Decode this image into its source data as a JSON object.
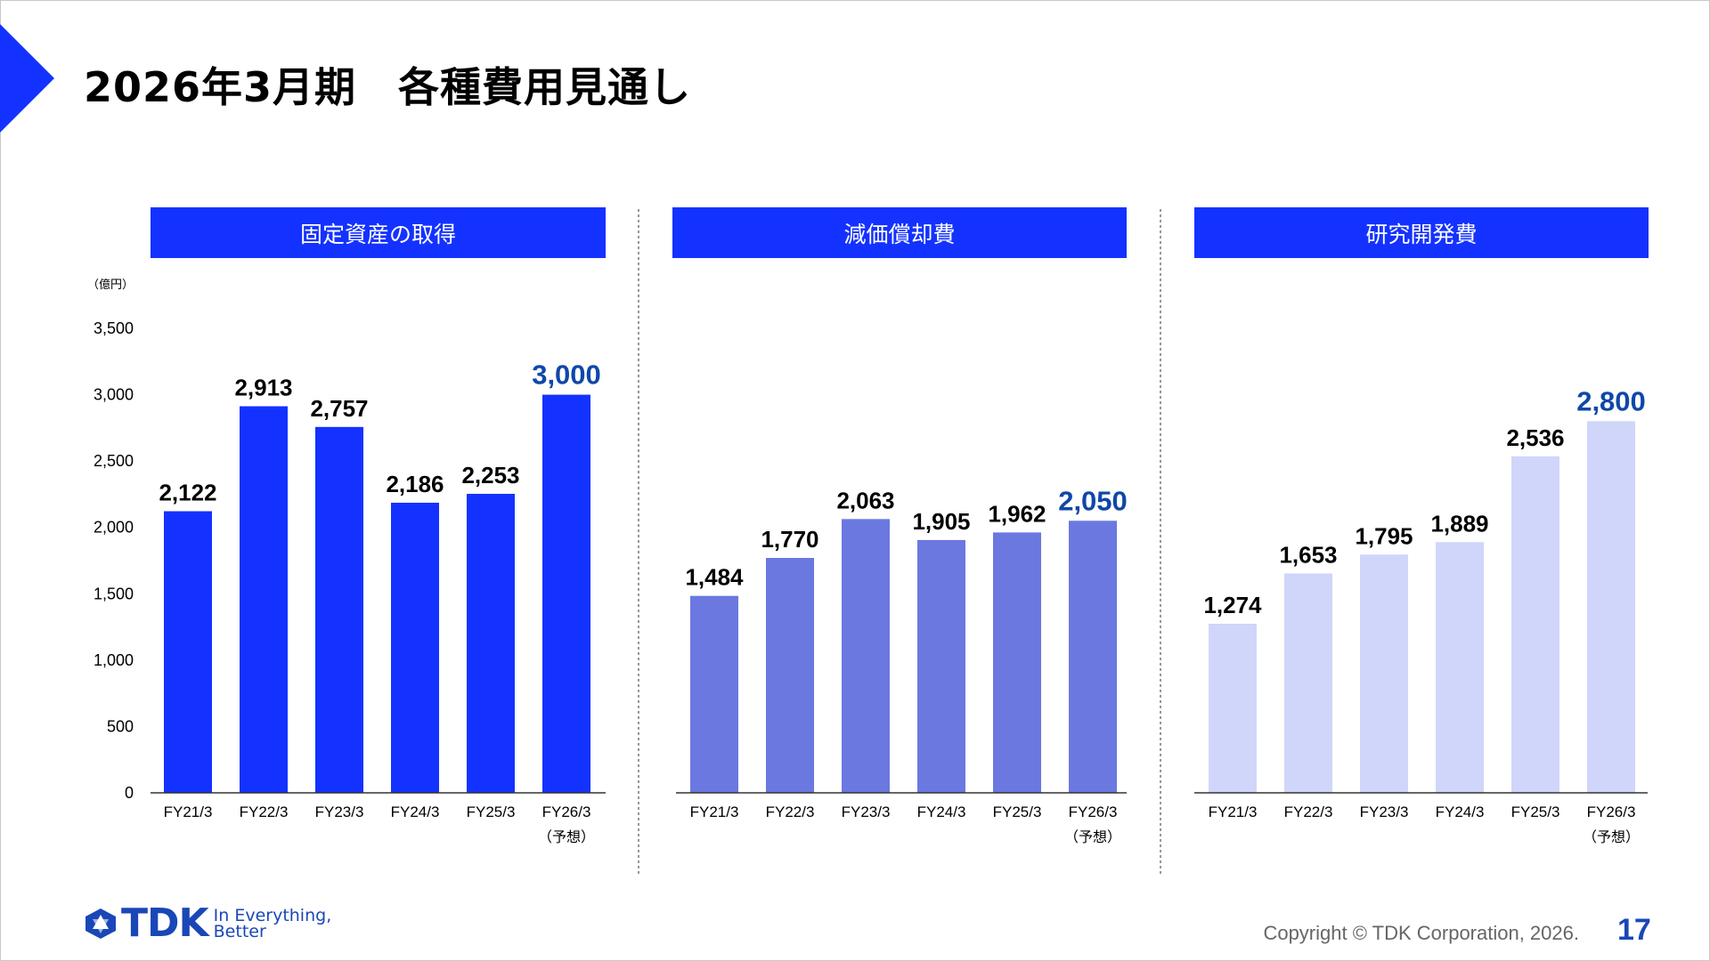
{
  "title": "2026年3月期　各種費用見通し",
  "footer": {
    "logo_text": "TDK",
    "tagline_line1": "In Everything,",
    "tagline_line2": "Better",
    "copyright": "Copyright  © TDK Corporation, 2026.",
    "page_number": "17"
  },
  "colors": {
    "accent": "#1432FF",
    "highlight_label": "#0F47A8",
    "series1": "#1432FF",
    "series2": "#6B78E0",
    "series3": "#D0D5FA"
  },
  "chart_data": [
    {
      "type": "bar",
      "title": "固定資産の取得",
      "unit": "（億円）",
      "categories": [
        "FY21/3",
        "FY22/3",
        "FY23/3",
        "FY24/3",
        "FY25/3",
        "FY26/3"
      ],
      "category_notes": [
        "",
        "",
        "",
        "",
        "",
        "（予想）"
      ],
      "values": [
        2122,
        2913,
        2757,
        2186,
        2253,
        3000
      ],
      "labels": [
        "2,122",
        "2,913",
        "2,757",
        "2,186",
        "2,253",
        "3,000"
      ],
      "highlight_index": 5,
      "color": "#1432FF",
      "ylim": [
        0,
        3500
      ],
      "yticks": [
        "0",
        "500",
        "1,000",
        "1,500",
        "2,000",
        "2,500",
        "3,000",
        "3,500"
      ],
      "grid": false
    },
    {
      "type": "bar",
      "title": "減価償却費",
      "categories": [
        "FY21/3",
        "FY22/3",
        "FY23/3",
        "FY24/3",
        "FY25/3",
        "FY26/3"
      ],
      "category_notes": [
        "",
        "",
        "",
        "",
        "",
        "（予想）"
      ],
      "values": [
        1484,
        1770,
        2063,
        1905,
        1962,
        2050
      ],
      "labels": [
        "1,484",
        "1,770",
        "2,063",
        "1,905",
        "1,962",
        "2,050"
      ],
      "highlight_index": 5,
      "color": "#6B78E0",
      "ylim": [
        0,
        3500
      ],
      "grid": false
    },
    {
      "type": "bar",
      "title": "研究開発費",
      "categories": [
        "FY21/3",
        "FY22/3",
        "FY23/3",
        "FY24/3",
        "FY25/3",
        "FY26/3"
      ],
      "category_notes": [
        "",
        "",
        "",
        "",
        "",
        "（予想）"
      ],
      "values": [
        1274,
        1653,
        1795,
        1889,
        2536,
        2800
      ],
      "labels": [
        "1,274",
        "1,653",
        "1,795",
        "1,889",
        "2,536",
        "2,800"
      ],
      "highlight_index": 5,
      "color": "#D0D5FA",
      "ylim": [
        0,
        3500
      ],
      "grid": false
    }
  ]
}
